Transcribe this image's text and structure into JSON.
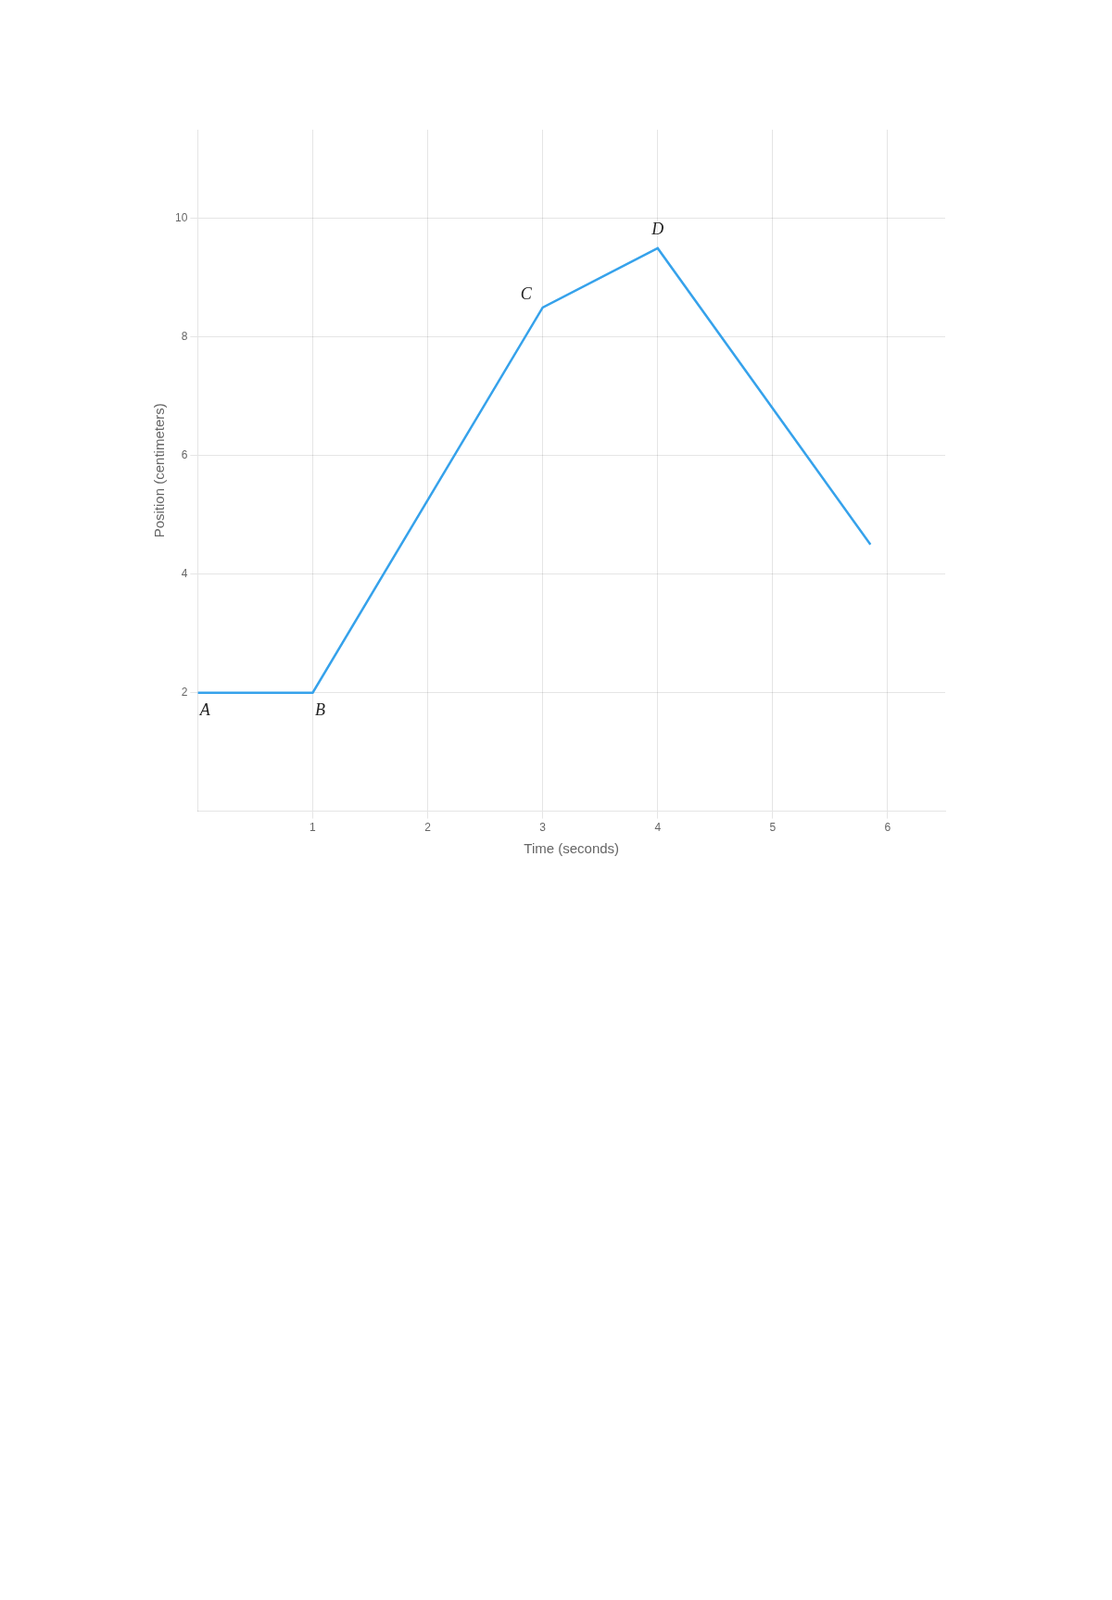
{
  "chart_data": {
    "type": "line",
    "x": [
      0,
      1,
      3,
      4,
      5.85
    ],
    "values": [
      2.0,
      2.0,
      8.5,
      9.5,
      4.5
    ],
    "xlabel": "Time (seconds)",
    "ylabel": "Position (centimeters)",
    "xlim": [
      0,
      6.5
    ],
    "ylim": [
      0,
      11.5
    ],
    "xticks": [
      1,
      2,
      3,
      4,
      5,
      6
    ],
    "yticks": [
      2,
      4,
      6,
      8,
      10
    ],
    "grid": true,
    "annotations": [
      {
        "text": "A",
        "x": 0,
        "y": 2.0
      },
      {
        "text": "B",
        "x": 1,
        "y": 2.0
      },
      {
        "text": "C",
        "x": 3,
        "y": 8.5
      },
      {
        "text": "D",
        "x": 4,
        "y": 9.5
      }
    ]
  }
}
